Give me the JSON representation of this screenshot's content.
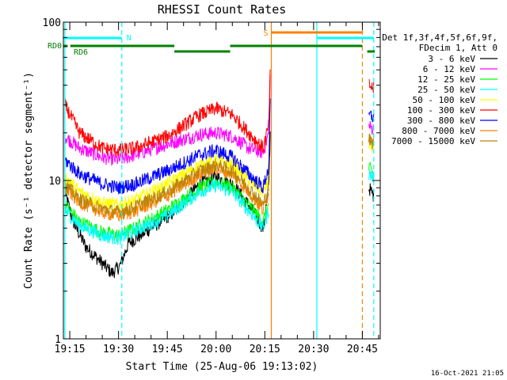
{
  "chart_data": {
    "type": "line",
    "title": "RHESSI Count Rates",
    "xlabel": "Start Time (25-Aug-06 19:13:02)",
    "ylabel": "Count Rate (s⁻¹ detector segment⁻¹)",
    "x_scale": "time",
    "y_scale": "log",
    "xlim": [
      "19:13:02",
      "20:50:30"
    ],
    "ylim": [
      1,
      100
    ],
    "x_ticks": [
      "19:15",
      "19:30",
      "19:45",
      "20:00",
      "20:15",
      "20:30",
      "20:45"
    ],
    "y_ticks": [
      1,
      10,
      100
    ],
    "grid": false,
    "legend_position": "right",
    "legend_header": [
      "Det 1f,3f,4f,5f,6f,9f,",
      "FDecim 1, Att 0"
    ],
    "timestamp": "16-Oct-2021 21:05",
    "series": [
      {
        "name": "3 - 6 keV",
        "color": "#000000",
        "points": [
          [
            "19:13:30",
            8.5
          ],
          [
            "19:16:00",
            5.5
          ],
          [
            "19:20:00",
            3.8
          ],
          [
            "19:25:00",
            3.0
          ],
          [
            "19:28:00",
            2.6
          ],
          [
            "19:30:30",
            2.9
          ],
          [
            "19:33:00",
            4.0
          ],
          [
            "19:40:00",
            5.0
          ],
          [
            "19:47:00",
            6.3
          ],
          [
            "19:55:00",
            9.5
          ],
          [
            "20:00:00",
            10.5
          ],
          [
            "20:05:00",
            9.5
          ],
          [
            "20:10:00",
            7.0
          ],
          [
            "20:14:30",
            5.0
          ],
          [
            "20:16:10",
            9.0
          ],
          [
            "20:16:40",
            20.0
          ],
          [
            "20:47:00",
            9.0
          ],
          [
            "20:48:30",
            8.0
          ]
        ]
      },
      {
        "name": "6 - 12 keV",
        "color": "#ff00ff",
        "points": [
          [
            "19:13:30",
            19.0
          ],
          [
            "19:18:00",
            16.0
          ],
          [
            "19:25:00",
            14.0
          ],
          [
            "19:30:00",
            13.5
          ],
          [
            "19:35:00",
            14.5
          ],
          [
            "19:45:00",
            17.0
          ],
          [
            "19:55:00",
            19.5
          ],
          [
            "20:00:00",
            20.0
          ],
          [
            "20:05:00",
            19.0
          ],
          [
            "20:10:00",
            16.0
          ],
          [
            "20:14:30",
            15.0
          ],
          [
            "20:16:10",
            20.0
          ],
          [
            "20:16:40",
            45.0
          ],
          [
            "20:47:00",
            22.0
          ],
          [
            "20:48:30",
            21.0
          ]
        ]
      },
      {
        "name": "12 - 25 keV",
        "color": "#00ff00",
        "points": [
          [
            "19:13:30",
            7.0
          ],
          [
            "19:18:00",
            5.5
          ],
          [
            "19:25:00",
            4.7
          ],
          [
            "19:30:00",
            4.5
          ],
          [
            "19:35:00",
            5.0
          ],
          [
            "19:45:00",
            6.5
          ],
          [
            "19:55:00",
            9.0
          ],
          [
            "20:00:00",
            9.8
          ],
          [
            "20:05:00",
            9.0
          ],
          [
            "20:10:00",
            7.0
          ],
          [
            "20:14:30",
            5.5
          ],
          [
            "20:16:10",
            7.0
          ],
          [
            "20:47:00",
            12.0
          ],
          [
            "20:48:30",
            11.0
          ]
        ]
      },
      {
        "name": "25 - 50 keV",
        "color": "#00ffff",
        "points": [
          [
            "19:13:30",
            6.5
          ],
          [
            "19:18:00",
            5.2
          ],
          [
            "19:25:00",
            4.5
          ],
          [
            "19:30:00",
            4.3
          ],
          [
            "19:35:00",
            4.8
          ],
          [
            "19:45:00",
            6.0
          ],
          [
            "19:55:00",
            8.5
          ],
          [
            "20:00:00",
            9.3
          ],
          [
            "20:05:00",
            8.5
          ],
          [
            "20:10:00",
            6.5
          ],
          [
            "20:14:30",
            5.0
          ],
          [
            "20:16:10",
            6.5
          ],
          [
            "20:47:00",
            11.0
          ],
          [
            "20:48:30",
            10.5
          ]
        ]
      },
      {
        "name": "50 - 100 keV",
        "color": "#ffff00",
        "points": [
          [
            "19:13:30",
            10.5
          ],
          [
            "19:18:00",
            8.5
          ],
          [
            "19:25:00",
            7.2
          ],
          [
            "19:30:00",
            7.0
          ],
          [
            "19:35:00",
            7.5
          ],
          [
            "19:45:00",
            9.5
          ],
          [
            "19:55:00",
            12.5
          ],
          [
            "20:00:00",
            13.5
          ],
          [
            "20:05:00",
            12.5
          ],
          [
            "20:10:00",
            10.0
          ],
          [
            "20:14:30",
            8.5
          ],
          [
            "20:16:10",
            10.0
          ],
          [
            "20:47:00",
            17.0
          ],
          [
            "20:48:30",
            16.0
          ]
        ]
      },
      {
        "name": "100 - 300 keV",
        "color": "#ff0000",
        "points": [
          [
            "19:13:30",
            30.0
          ],
          [
            "19:18:00",
            20.0
          ],
          [
            "19:25:00",
            16.0
          ],
          [
            "19:30:00",
            15.5
          ],
          [
            "19:35:00",
            16.0
          ],
          [
            "19:45:00",
            19.0
          ],
          [
            "19:55:00",
            26.0
          ],
          [
            "20:00:00",
            28.5
          ],
          [
            "20:05:00",
            26.0
          ],
          [
            "20:10:00",
            20.0
          ],
          [
            "20:14:30",
            16.0
          ],
          [
            "20:16:10",
            22.0
          ],
          [
            "20:16:40",
            48.0
          ],
          [
            "20:47:00",
            40.0
          ],
          [
            "20:48:30",
            38.0
          ]
        ]
      },
      {
        "name": "300 - 800 keV",
        "color": "#0000ff",
        "points": [
          [
            "19:13:30",
            13.5
          ],
          [
            "19:18:00",
            11.0
          ],
          [
            "19:25:00",
            9.5
          ],
          [
            "19:30:00",
            9.0
          ],
          [
            "19:35:00",
            9.5
          ],
          [
            "19:45:00",
            11.5
          ],
          [
            "19:55:00",
            14.5
          ],
          [
            "20:00:00",
            15.5
          ],
          [
            "20:05:00",
            14.0
          ],
          [
            "20:10:00",
            11.0
          ],
          [
            "20:14:30",
            9.0
          ],
          [
            "20:16:10",
            12.0
          ],
          [
            "20:16:40",
            30.0
          ],
          [
            "20:47:00",
            26.0
          ],
          [
            "20:48:30",
            25.0
          ]
        ]
      },
      {
        "name": "800 - 7000 keV",
        "color": "#ff8000",
        "points": [
          [
            "19:13:30",
            9.0
          ],
          [
            "19:18:00",
            7.3
          ],
          [
            "19:25:00",
            6.3
          ],
          [
            "19:30:00",
            6.0
          ],
          [
            "19:35:00",
            6.4
          ],
          [
            "19:45:00",
            8.0
          ],
          [
            "19:55:00",
            11.0
          ],
          [
            "20:00:00",
            12.0
          ],
          [
            "20:05:00",
            11.0
          ],
          [
            "20:10:00",
            8.5
          ],
          [
            "20:14:30",
            6.5
          ],
          [
            "20:16:10",
            8.5
          ],
          [
            "20:47:00",
            19.0
          ],
          [
            "20:48:30",
            18.0
          ]
        ]
      },
      {
        "name": "7000 - 15000 keV",
        "color": "#b8860b",
        "points": [
          [
            "19:13:30",
            9.5
          ],
          [
            "19:18:00",
            7.6
          ],
          [
            "19:25:00",
            6.6
          ],
          [
            "19:30:00",
            6.3
          ],
          [
            "19:35:00",
            6.8
          ],
          [
            "19:45:00",
            8.5
          ],
          [
            "19:55:00",
            11.5
          ],
          [
            "20:00:00",
            12.5
          ],
          [
            "20:05:00",
            11.5
          ],
          [
            "20:10:00",
            9.0
          ],
          [
            "20:14:30",
            7.0
          ],
          [
            "20:16:10",
            9.0
          ],
          [
            "20:47:00",
            18.0
          ],
          [
            "20:48:30",
            17.0
          ]
        ]
      }
    ],
    "flag_bars": [
      {
        "label": "N",
        "color": "#00ffff",
        "segments": [
          [
            "19:13:02",
            "19:31:00"
          ],
          [
            "20:31:00",
            "20:48:30"
          ]
        ]
      },
      {
        "label": "S",
        "color": "#ff8000",
        "segments": [
          [
            "20:17:00",
            "20:45:00"
          ]
        ]
      },
      {
        "label": "RD0",
        "color": "#008000",
        "segments": [
          [
            "19:13:02",
            "19:14:20"
          ],
          [
            "19:15:10",
            "19:47:10"
          ],
          [
            "20:04:20",
            "20:45:00"
          ]
        ]
      },
      {
        "label": "RD6",
        "color": "#008000",
        "segments": [
          [
            "19:47:10",
            "20:04:20"
          ],
          [
            "20:46:30",
            "20:48:50"
          ]
        ]
      }
    ],
    "vertical_markers": [
      {
        "time": "19:13:30",
        "color": "#00ffff",
        "style": "solid"
      },
      {
        "time": "19:31:00",
        "color": "#00ffff",
        "style": "dashed"
      },
      {
        "time": "20:17:00",
        "color": "#ff8000",
        "style": "solid"
      },
      {
        "time": "20:31:00",
        "color": "#00ffff",
        "style": "solid"
      },
      {
        "time": "20:45:00",
        "color": "#ff8000",
        "style": "dashed"
      },
      {
        "time": "20:48:30",
        "color": "#00ffff",
        "style": "dashed"
      }
    ],
    "gaps": [
      [
        "20:17:00",
        "20:46:40"
      ]
    ]
  }
}
